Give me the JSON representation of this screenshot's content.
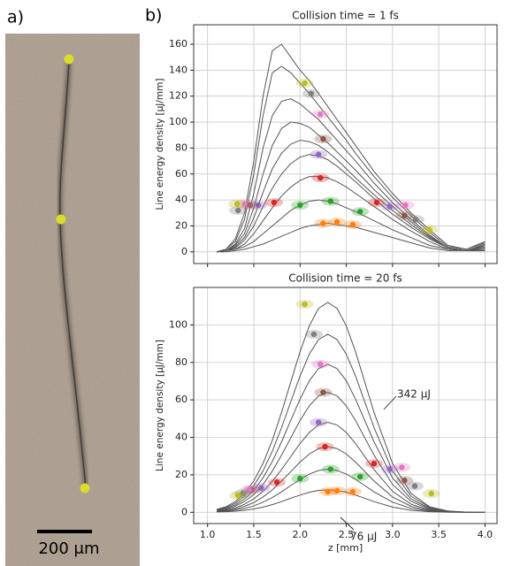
{
  "panel_a": {
    "label": "a)",
    "scale_bar": "200 μm"
  },
  "panel_b": {
    "label": "b)"
  },
  "chart_data": [
    {
      "type": "line",
      "title": "Collision time = 1 fs",
      "ylabel": "Line energy density [μJ/mm]",
      "xlim": [
        0.85,
        4.13
      ],
      "ylim": [
        -9,
        175
      ],
      "xticks": [
        1.0,
        1.5,
        2.0,
        2.5,
        3.0,
        3.5,
        4.0
      ],
      "yticks": [
        0,
        20,
        40,
        60,
        80,
        100,
        120,
        140,
        160
      ],
      "grid": true,
      "line_color": "#555555",
      "x": [
        1.1,
        1.2,
        1.3,
        1.4,
        1.5,
        1.6,
        1.7,
        1.8,
        1.9,
        2.0,
        2.1,
        2.2,
        2.3,
        2.4,
        2.5,
        2.6,
        2.8,
        3.0,
        3.2,
        3.4,
        3.6,
        3.8,
        4.0
      ],
      "lines": [
        {
          "values": [
            0,
            2,
            10,
            30,
            70,
            120,
            155,
            160,
            150,
            140,
            132,
            122,
            112,
            102,
            92,
            82,
            62,
            45,
            30,
            17,
            5,
            2,
            8
          ]
        },
        {
          "values": [
            0,
            2,
            8,
            25,
            60,
            105,
            138,
            143,
            138,
            130,
            122,
            113,
            104,
            95,
            86,
            76,
            58,
            42,
            28,
            15,
            4,
            2,
            7
          ]
        },
        {
          "values": [
            0,
            1,
            6,
            18,
            45,
            80,
            105,
            116,
            118,
            114,
            108,
            102,
            94,
            86,
            78,
            70,
            53,
            38,
            25,
            13,
            3,
            1,
            6
          ]
        },
        {
          "values": [
            0,
            1,
            5,
            14,
            34,
            60,
            82,
            95,
            100,
            99,
            96,
            90,
            84,
            77,
            70,
            63,
            48,
            35,
            23,
            12,
            3,
            1,
            5
          ]
        },
        {
          "values": [
            0,
            1,
            4,
            11,
            26,
            46,
            64,
            76,
            83,
            86,
            85,
            82,
            77,
            71,
            64,
            57,
            44,
            32,
            21,
            11,
            3,
            1,
            4
          ]
        },
        {
          "values": [
            0,
            1,
            3,
            9,
            20,
            35,
            49,
            60,
            68,
            73,
            75,
            74,
            71,
            66,
            60,
            54,
            41,
            29,
            19,
            10,
            3,
            1,
            3
          ]
        },
        {
          "values": [
            0,
            1,
            2,
            6,
            14,
            24,
            34,
            43,
            50,
            55,
            58,
            58,
            57,
            54,
            50,
            45,
            35,
            25,
            16,
            8,
            2,
            1,
            2
          ]
        },
        {
          "values": [
            0,
            1,
            2,
            4,
            8,
            14,
            20,
            26,
            32,
            36,
            39,
            40,
            39,
            37,
            34,
            31,
            24,
            17,
            11,
            5,
            2,
            1,
            1
          ]
        },
        {
          "values": [
            0,
            0,
            1,
            2,
            4,
            6,
            9,
            12,
            15,
            18,
            20,
            21,
            22,
            21,
            20,
            19,
            15,
            11,
            7,
            3,
            1,
            1,
            1
          ]
        }
      ],
      "markers": [
        {
          "color": "#ff7f0e",
          "x": [
            2.25,
            2.4,
            2.57
          ],
          "y": [
            22,
            23,
            21
          ]
        },
        {
          "color": "#2ca02c",
          "x": [
            2.0,
            2.33,
            2.65
          ],
          "y": [
            36,
            39,
            31
          ]
        },
        {
          "color": "#d62728",
          "x": [
            1.72,
            2.22,
            2.83
          ],
          "y": [
            38,
            57,
            38
          ]
        },
        {
          "color": "#9467bd",
          "x": [
            1.55,
            2.2,
            2.97
          ],
          "y": [
            36,
            75,
            35
          ]
        },
        {
          "color": "#8c564b",
          "x": [
            1.46,
            2.25,
            3.13
          ],
          "y": [
            36,
            87,
            28
          ]
        },
        {
          "color": "#e377c2",
          "x": [
            1.4,
            2.22,
            3.14
          ],
          "y": [
            37,
            106,
            36
          ]
        },
        {
          "color": "#7f7f7f",
          "x": [
            1.33,
            2.12,
            3.25
          ],
          "y": [
            32,
            122,
            25
          ]
        },
        {
          "color": "#bcbd22",
          "x": [
            1.32,
            2.05,
            3.4
          ],
          "y": [
            37,
            130,
            17
          ]
        }
      ]
    },
    {
      "type": "line",
      "title": "Collision time = 20 fs",
      "ylabel": "Line energy density [μJ/mm]",
      "xlabel": "z [mm]",
      "xlim": [
        0.85,
        4.13
      ],
      "ylim": [
        -6,
        120
      ],
      "xticks": [
        {
          "value": 1.0,
          "label": "1.0"
        },
        {
          "value": 1.5,
          "label": "1.5"
        },
        {
          "value": 2.0,
          "label": "2.0"
        },
        {
          "value": 2.5,
          "label": "2.5"
        },
        {
          "value": 3.0,
          "label": "3.0"
        },
        {
          "value": 3.5,
          "label": "3.5"
        },
        {
          "value": 4.0,
          "label": "4.0"
        }
      ],
      "yticks": [
        0,
        20,
        40,
        60,
        80,
        100
      ],
      "grid": true,
      "line_color": "#555555",
      "annotations": [
        "342 μJ",
        "76 μJ"
      ],
      "x": [
        1.1,
        1.2,
        1.3,
        1.4,
        1.5,
        1.6,
        1.7,
        1.8,
        1.9,
        2.0,
        2.1,
        2.2,
        2.3,
        2.4,
        2.5,
        2.6,
        2.8,
        3.0,
        3.2,
        3.4,
        3.6,
        3.8,
        4.0
      ],
      "lines": [
        {
          "values": [
            1.6,
            3.0,
            5.7,
            10.1,
            16.7,
            26.1,
            38.4,
            53.3,
            69.6,
            85.7,
            99.5,
            108.8,
            112,
            108.8,
            99.5,
            85.7,
            53.3,
            26.1,
            10.1,
            3.0,
            0.7,
            0.1,
            0
          ]
        },
        {
          "values": [
            1.3,
            2.6,
            4.8,
            8.6,
            14.2,
            22.1,
            32.6,
            45.2,
            59.0,
            72.7,
            84.4,
            92.2,
            95,
            92.2,
            84.4,
            72.7,
            45.2,
            22.1,
            8.6,
            2.6,
            0.6,
            0.1,
            0
          ]
        },
        {
          "values": [
            1.1,
            2.1,
            4.0,
            7.1,
            11.8,
            18.4,
            27.1,
            37.6,
            49.1,
            60.4,
            70.2,
            76.7,
            79,
            76.7,
            70.2,
            60.4,
            37.6,
            18.4,
            7.1,
            2.1,
            0.5,
            0.1,
            0
          ]
        },
        {
          "values": [
            0.9,
            1.7,
            3.3,
            5.8,
            9.5,
            14.9,
            22.0,
            30.5,
            39.7,
            49.0,
            56.8,
            62.1,
            64,
            62.1,
            56.8,
            49.0,
            30.5,
            14.9,
            5.8,
            1.7,
            0.4,
            0.1,
            0
          ]
        },
        {
          "values": [
            0.7,
            1.3,
            2.4,
            4.3,
            7.2,
            11.2,
            16.5,
            22.8,
            29.8,
            36.7,
            42.6,
            46.6,
            48,
            46.6,
            42.6,
            36.7,
            22.8,
            11.2,
            4.3,
            1.3,
            0.3,
            0,
            0
          ]
        },
        {
          "values": [
            0.5,
            0.9,
            1.8,
            3.2,
            5.2,
            8.2,
            12.0,
            16.7,
            21.7,
            26.8,
            31.1,
            34.0,
            35,
            34.0,
            31.1,
            26.8,
            16.7,
            8.2,
            3.2,
            0.9,
            0.2,
            0,
            0
          ]
        },
        {
          "values": [
            0.3,
            0.6,
            1.2,
            2.1,
            3.4,
            5.4,
            7.9,
            10.9,
            14.3,
            17.6,
            20.4,
            22.3,
            23,
            22.3,
            20.4,
            17.6,
            10.9,
            5.4,
            2.1,
            0.6,
            0.1,
            0,
            0
          ]
        },
        {
          "values": [
            0.2,
            0.3,
            0.6,
            1.1,
            1.8,
            2.8,
            4.1,
            5.7,
            7.5,
            9.2,
            10.7,
            11.7,
            12,
            11.7,
            10.7,
            9.2,
            5.7,
            2.8,
            1.1,
            0.3,
            0.1,
            0,
            0
          ]
        }
      ],
      "markers": [
        {
          "color": "#ff7f0e",
          "x": [
            2.3,
            2.4,
            2.57
          ],
          "y": [
            11,
            11.5,
            11
          ]
        },
        {
          "color": "#2ca02c",
          "x": [
            2.0,
            2.33,
            2.65
          ],
          "y": [
            18,
            23,
            19
          ]
        },
        {
          "color": "#d62728",
          "x": [
            1.75,
            2.27,
            2.8
          ],
          "y": [
            16,
            35,
            26
          ]
        },
        {
          "color": "#9467bd",
          "x": [
            1.58,
            2.2,
            2.97
          ],
          "y": [
            13,
            48,
            23
          ]
        },
        {
          "color": "#8c564b",
          "x": [
            1.48,
            2.25,
            3.13
          ],
          "y": [
            12,
            64,
            17
          ]
        },
        {
          "color": "#e377c2",
          "x": [
            1.45,
            2.22,
            3.1
          ],
          "y": [
            12,
            79,
            24
          ]
        },
        {
          "color": "#7f7f7f",
          "x": [
            1.38,
            2.15,
            3.24
          ],
          "y": [
            10,
            95,
            14
          ]
        },
        {
          "color": "#bcbd22",
          "x": [
            1.33,
            2.05,
            3.42
          ],
          "y": [
            9,
            111,
            10
          ]
        }
      ]
    }
  ]
}
